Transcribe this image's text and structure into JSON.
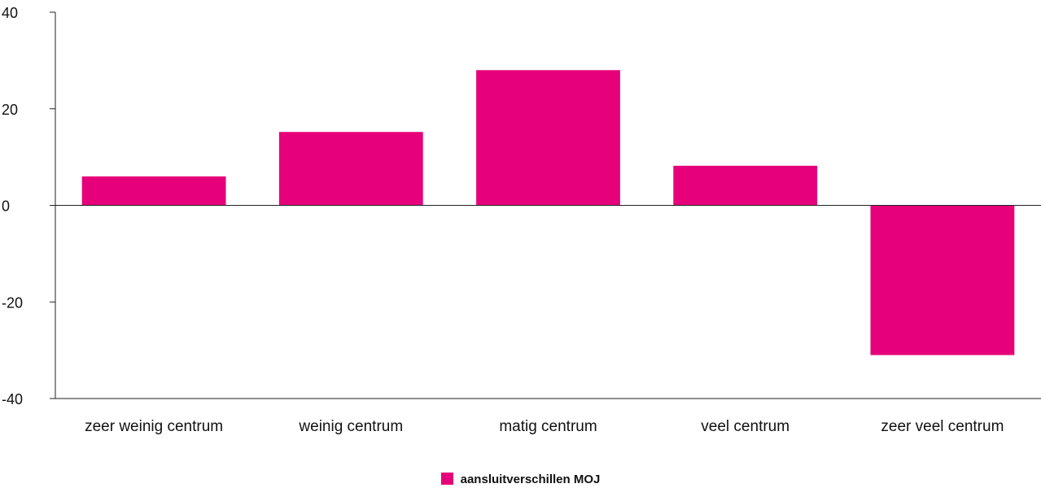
{
  "chart_data": {
    "type": "bar",
    "categories": [
      "zeer weinig centrum",
      "weinig centrum",
      "matig centrum",
      "veel centrum",
      "zeer veel centrum"
    ],
    "series": [
      {
        "name": "aansluitverschillen MOJ",
        "values": [
          6,
          15.2,
          28,
          8.2,
          -31
        ]
      }
    ],
    "ylim": [
      -40,
      40
    ],
    "yticks": [
      "40",
      "20",
      "0",
      "-20",
      "-40"
    ],
    "grid": false,
    "legend_position": "bottom-center",
    "bar_color": "#e6007a"
  }
}
